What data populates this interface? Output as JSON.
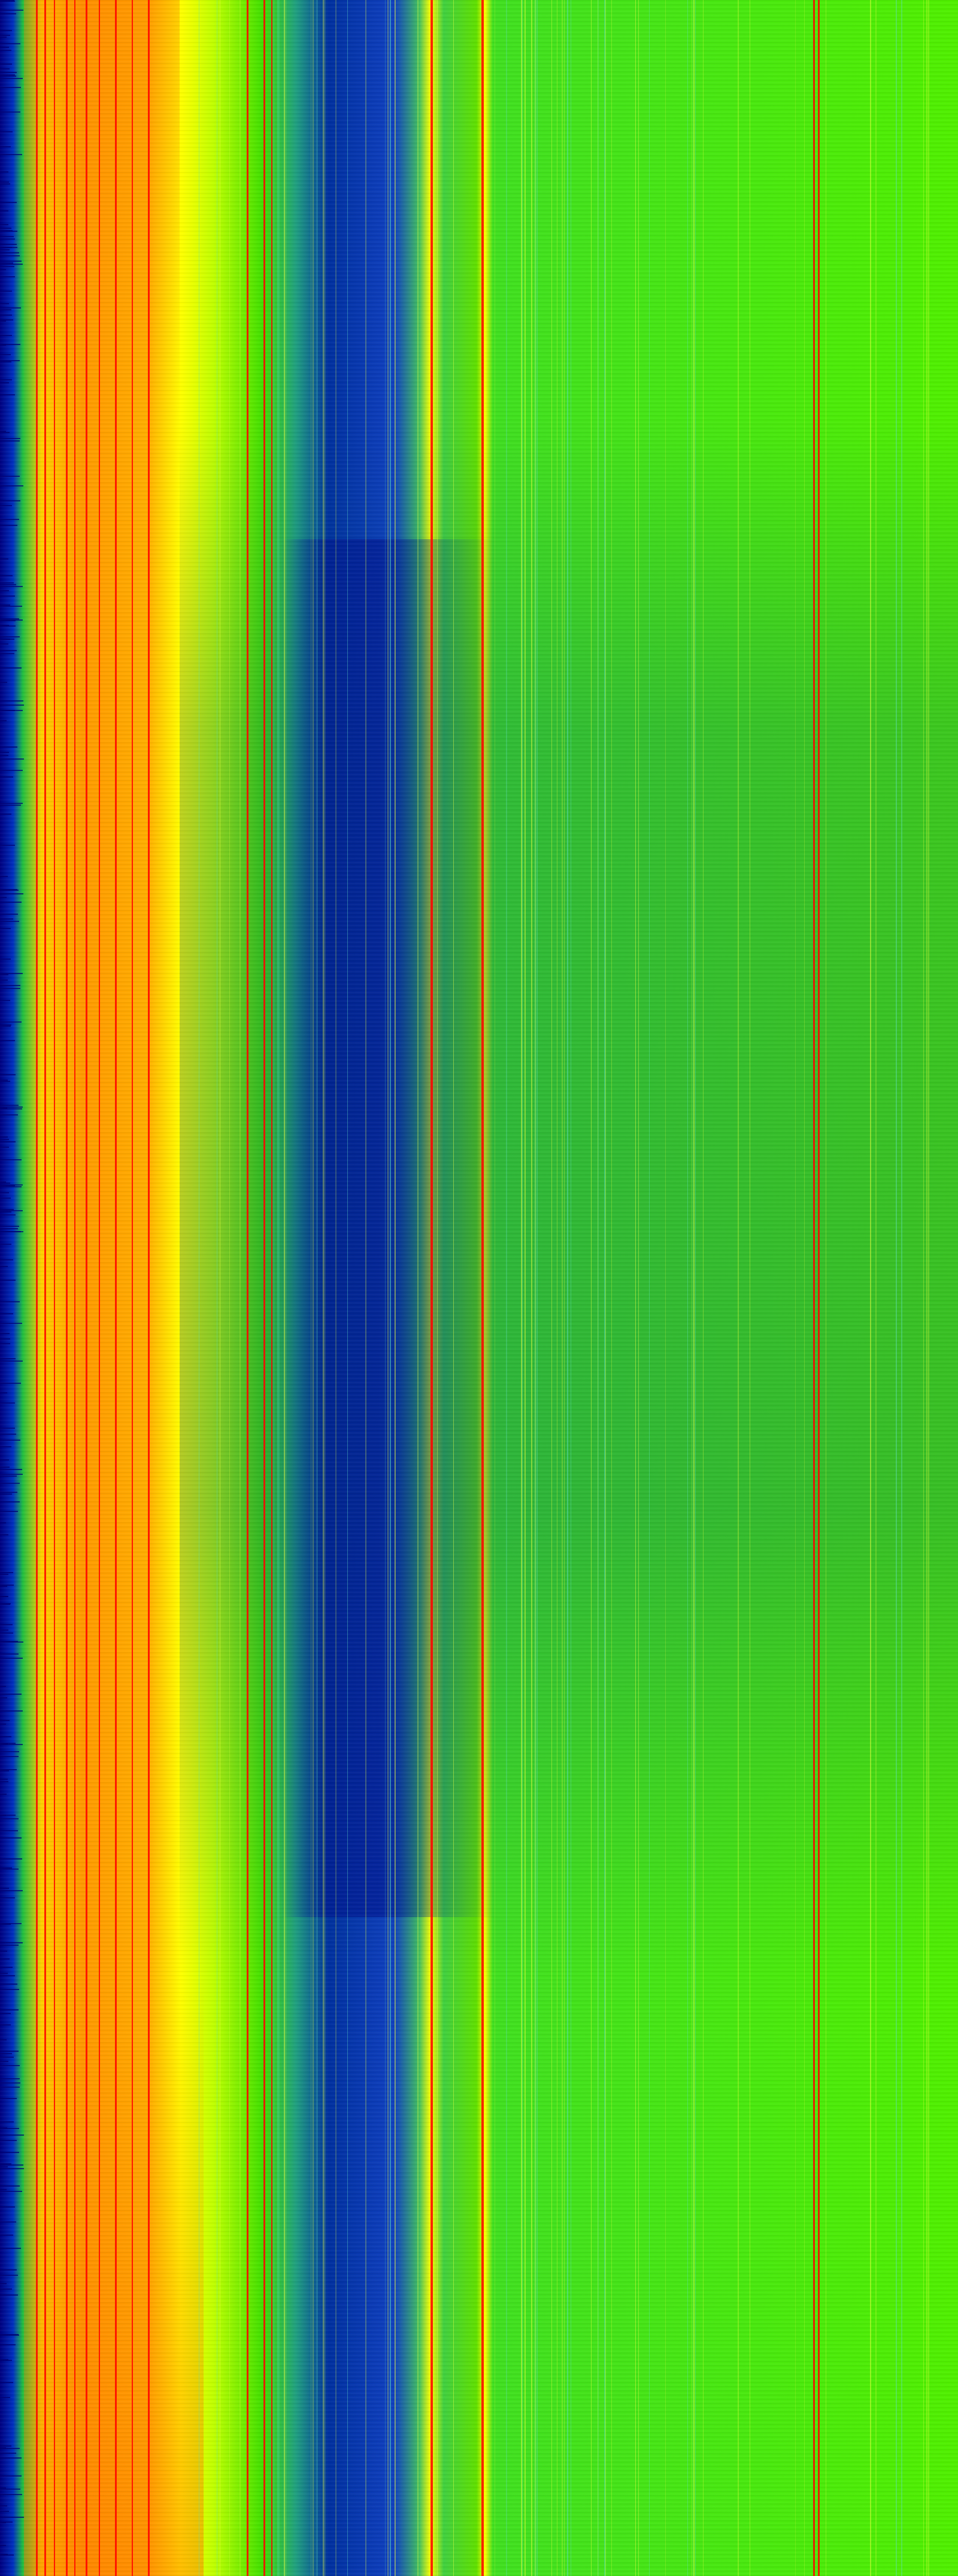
{
  "image": {
    "kind": "spectrogram-waterfall",
    "colormap": [
      "#000080",
      "#0030c0",
      "#20c040",
      "#80ff00",
      "#ffff00",
      "#ff9a00",
      "#ff0000"
    ],
    "accent_line_color": "#ff0000"
  }
}
